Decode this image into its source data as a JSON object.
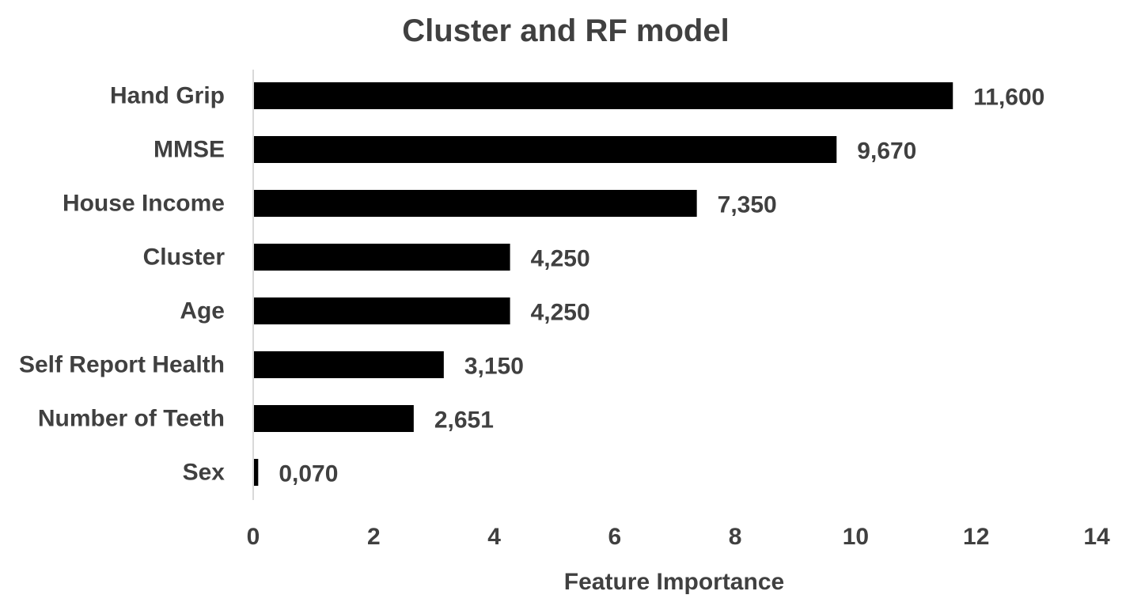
{
  "chart_data": {
    "type": "bar",
    "orientation": "horizontal",
    "title": "Cluster and RF model",
    "xlabel": "Feature Importance",
    "ylabel": "",
    "xlim": [
      0,
      14
    ],
    "x_ticks": [
      0,
      2,
      4,
      6,
      8,
      10,
      12,
      14
    ],
    "grid": false,
    "legend": "none",
    "bar_color": "#000000",
    "text_color": "#404040",
    "axis_color": "#d9d9d9",
    "categories": [
      "Hand Grip",
      "MMSE",
      "House Income",
      "Cluster",
      "Age",
      "Self Report Health",
      "Number of Teeth",
      "Sex"
    ],
    "values": [
      11.6,
      9.67,
      7.35,
      4.25,
      4.25,
      3.15,
      2.651,
      0.07
    ],
    "value_labels": [
      "11,600",
      "9,670",
      "7,350",
      "4,250",
      "4,250",
      "3,150",
      "2,651",
      "0,070"
    ]
  }
}
